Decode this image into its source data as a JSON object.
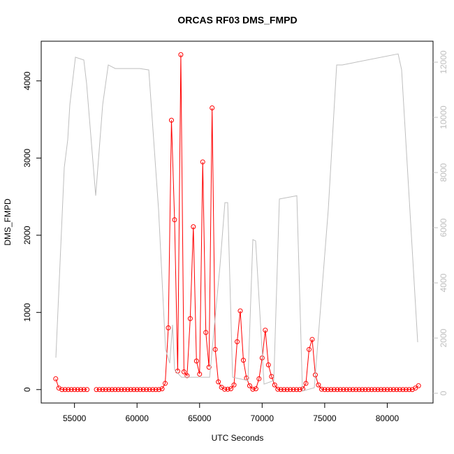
{
  "chart_data": {
    "type": "line",
    "title": "ORCAS RF03 DMS_FMPD",
    "xlabel": "UTC Seconds",
    "ylabel": "DMS_FMPD",
    "xlim": [
      52340,
      83660
    ],
    "xticks": [
      55000,
      60000,
      65000,
      70000,
      75000,
      80000
    ],
    "ylim": [
      -174,
      4514
    ],
    "yticks": [
      0,
      1000,
      2000,
      3000,
      4000
    ],
    "y2lim": [
      -354,
      12760
    ],
    "y2ticks": [
      0,
      2000,
      4000,
      6000,
      8000,
      10000,
      12000
    ],
    "series": [
      {
        "color": "#ff0000",
        "markers": true,
        "x": [
          53500,
          53750,
          54000,
          54250,
          54500,
          54750,
          55000,
          55250,
          55500,
          55750,
          56000,
          56250,
          56500,
          56750,
          57000,
          57250,
          57500,
          57750,
          58000,
          58250,
          58500,
          58750,
          59000,
          59250,
          59500,
          59750,
          60000,
          60250,
          60500,
          60750,
          61000,
          61250,
          61500,
          61750,
          62000,
          62250,
          62500,
          62750,
          63000,
          63250,
          63500,
          63750,
          64000,
          64250,
          64500,
          64750,
          65000,
          65250,
          65500,
          65750,
          66000,
          66250,
          66500,
          66750,
          67000,
          67250,
          67500,
          67750,
          68000,
          68250,
          68500,
          68750,
          69000,
          69250,
          69500,
          69750,
          70000,
          70250,
          70500,
          70750,
          71000,
          71250,
          71500,
          71750,
          72000,
          72250,
          72500,
          72750,
          73000,
          73250,
          73500,
          73750,
          74000,
          74250,
          74500,
          74750,
          75000,
          75250,
          75500,
          75750,
          76000,
          76250,
          76500,
          76750,
          77000,
          77250,
          77500,
          77750,
          78000,
          78250,
          78500,
          78750,
          79000,
          79250,
          79500,
          79750,
          80000,
          80250,
          80500,
          80750,
          81000,
          81250,
          81500,
          81750,
          82000,
          82250,
          82500
        ],
        "values": [
          140,
          20,
          0,
          0,
          0,
          0,
          0,
          0,
          0,
          0,
          0,
          null,
          null,
          0,
          0,
          0,
          0,
          0,
          0,
          0,
          0,
          0,
          0,
          0,
          0,
          0,
          0,
          0,
          0,
          0,
          0,
          0,
          0,
          0,
          10,
          80,
          800,
          3490,
          2200,
          240,
          4340,
          230,
          180,
          920,
          2110,
          370,
          200,
          2950,
          740,
          290,
          3650,
          520,
          100,
          30,
          5,
          5,
          10,
          60,
          620,
          1020,
          380,
          150,
          50,
          5,
          10,
          140,
          410,
          770,
          320,
          170,
          60,
          5,
          0,
          0,
          0,
          0,
          0,
          0,
          0,
          10,
          80,
          520,
          650,
          190,
          60,
          5,
          0,
          0,
          0,
          0,
          0,
          0,
          0,
          0,
          0,
          0,
          0,
          0,
          0,
          0,
          0,
          0,
          0,
          0,
          0,
          0,
          0,
          0,
          0,
          0,
          0,
          0,
          0,
          0,
          0,
          20,
          50
        ]
      },
      {
        "color": "#bebebe",
        "axis": "y2",
        "markers": false,
        "x": [
          53512,
          54182,
          54461,
          54629,
          55076,
          55746,
          55969,
          56695,
          57254,
          57700,
          58258,
          60212,
          60938,
          61720,
          62278,
          62613,
          62837,
          63004,
          63562,
          64680,
          65800,
          66632,
          67023,
          67247,
          67638,
          68866,
          69257,
          69480,
          70150,
          70931,
          71378,
          72774,
          73221,
          74170,
          75286,
          75956,
          76403,
          80870,
          81149,
          82433
        ],
        "values": [
          1290,
          8180,
          9190,
          10460,
          12180,
          12080,
          11220,
          7160,
          10460,
          11900,
          11770,
          11770,
          11720,
          6660,
          1600,
          1090,
          2480,
          840,
          580,
          580,
          580,
          4630,
          6910,
          6910,
          580,
          460,
          5570,
          5520,
          330,
          460,
          7040,
          7160,
          80,
          200,
          6660,
          11900,
          11900,
          12300,
          11720,
          1850
        ]
      }
    ]
  }
}
